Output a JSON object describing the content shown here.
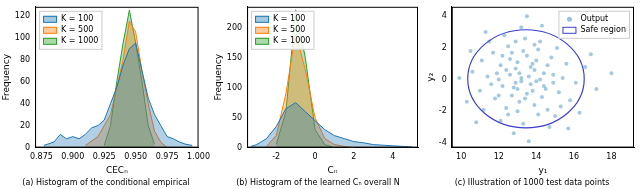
{
  "chart_data": [
    {
      "type": "line",
      "xlabel": "CECₙ",
      "ylabel": "Frequency",
      "caption": "(a) Histogram of the conditional empirical",
      "xlim": [
        0.87,
        1.0
      ],
      "xticks": [
        {
          "value": 0.875,
          "label": "0.875"
        },
        {
          "value": 0.9,
          "label": "0.900"
        },
        {
          "value": 0.925,
          "label": "0.925"
        },
        {
          "value": 0.95,
          "label": "0.950"
        },
        {
          "value": 0.975,
          "label": "0.975"
        },
        {
          "value": 1,
          "label": "1.000"
        }
      ],
      "ylim": [
        0,
        128
      ],
      "yticks": [
        0,
        20,
        40,
        60,
        80,
        100,
        120
      ],
      "grid": false,
      "legend": "upper left",
      "series": [
        {
          "name": "K = 100",
          "color": "#1f77b4",
          "x": [
            0.877,
            0.885,
            0.89,
            0.895,
            0.9,
            0.905,
            0.91,
            0.915,
            0.92,
            0.925,
            0.93,
            0.935,
            0.94,
            0.945,
            0.95,
            0.955,
            0.96,
            0.965,
            0.97,
            0.975,
            0.98,
            0.985,
            0.99,
            0.995
          ],
          "values": [
            2,
            5,
            12,
            8,
            10,
            8,
            12,
            18,
            20,
            25,
            40,
            55,
            75,
            90,
            95,
            70,
            45,
            30,
            20,
            10,
            8,
            5,
            3,
            2
          ]
        },
        {
          "name": "K = 500",
          "color": "#ff7f0e",
          "x": [
            0.91,
            0.92,
            0.93,
            0.94,
            0.945,
            0.95,
            0.955,
            0.96,
            0.965,
            0.97,
            0.975
          ],
          "values": [
            2,
            10,
            30,
            80,
            115,
            105,
            70,
            40,
            15,
            5,
            0
          ]
        },
        {
          "name": "K = 1000",
          "color": "#2ca02c",
          "x": [
            0.925,
            0.93,
            0.935,
            0.94,
            0.945,
            0.95,
            0.955,
            0.96,
            0.965
          ],
          "values": [
            2,
            20,
            60,
            95,
            125,
            95,
            60,
            20,
            3
          ]
        }
      ]
    },
    {
      "type": "line",
      "xlabel": "Cₙ",
      "ylabel": "Frequency",
      "caption": "(b) Histogram of the learned Cₙ overall N",
      "xlim": [
        -3.5,
        5.3
      ],
      "xticks": [
        -2,
        0,
        2,
        4
      ],
      "ylim": [
        0,
        235
      ],
      "yticks": [
        0,
        50,
        100,
        150,
        200
      ],
      "grid": false,
      "legend": "upper left",
      "series": [
        {
          "name": "K = 100",
          "color": "#1f77b4",
          "x": [
            -3.3,
            -3,
            -2.5,
            -2,
            -1.5,
            -1,
            -0.5,
            0,
            0.5,
            1,
            1.5,
            2,
            2.5,
            3,
            3.5,
            4,
            4.5,
            5
          ],
          "values": [
            2,
            5,
            15,
            35,
            65,
            75,
            60,
            45,
            30,
            20,
            15,
            10,
            8,
            5,
            4,
            3,
            2,
            1
          ]
        },
        {
          "name": "K = 500",
          "color": "#ff7f0e",
          "x": [
            -2.5,
            -2,
            -1.5,
            -1,
            -0.5,
            0,
            0.5,
            1,
            1.5,
            2
          ],
          "values": [
            2,
            20,
            90,
            190,
            130,
            50,
            15,
            5,
            2,
            0
          ]
        },
        {
          "name": "K = 1000",
          "color": "#2ca02c",
          "x": [
            -2,
            -1.5,
            -1,
            -0.5,
            0,
            0.5,
            1
          ],
          "values": [
            5,
            60,
            230,
            150,
            30,
            5,
            0
          ]
        }
      ]
    },
    {
      "type": "scatter",
      "xlabel": "y₁",
      "ylabel": "y₂",
      "caption": "(c) Illustration of 1000 test data points",
      "xlim": [
        9.5,
        19.2
      ],
      "xticks": [
        10,
        12,
        14,
        16,
        18
      ],
      "ylim": [
        -4.3,
        4.6
      ],
      "yticks": [
        -4,
        -2,
        0,
        2,
        4
      ],
      "grid": false,
      "legend": "upper right",
      "series": [
        {
          "name": "Output",
          "color": "#1f77b4",
          "marker": "o",
          "x": [
            13.2,
            12.8,
            13.9,
            14.3,
            12.1,
            13.5,
            11.8,
            14.9,
            13.0,
            12.5,
            14.1,
            15.2,
            11.4,
            13.7,
            12.9,
            14.6,
            12.2,
            13.4,
            15.6,
            11.0,
            13.1,
            12.6,
            14.0,
            13.8,
            12.4,
            14.4,
            11.7,
            15.0,
            13.3,
            12.0,
            16.1,
            10.6,
            13.6,
            14.8,
            12.7,
            13.9,
            11.2,
            14.2,
            12.3,
            15.4,
            13.0,
            12.9,
            14.5,
            13.5,
            11.9,
            16.6,
            10.3,
            13.2,
            14.7,
            12.1,
            15.8,
            11.5,
            13.7,
            12.6,
            14.1,
            13.3,
            12.8,
            15.1,
            11.1,
            17.2,
            9.9,
            13.6,
            14.3,
            12.4,
            13.8,
            14.9,
            12.0,
            13.1,
            12.7,
            14.6,
            16.9,
            10.8,
            13.4,
            12.2,
            15.3,
            13.9,
            11.6,
            14.0,
            12.5,
            13.0,
            18.0,
            13.5,
            15.7,
            11.3,
            14.4,
            13.2,
            12.9,
            16.3,
            10.5,
            14.2
          ],
          "values": [
            0.1,
            -0.5,
            0.6,
            -1.1,
            0.9,
            1.5,
            -1.2,
            0.3,
            -2.0,
            2.1,
            1.9,
            -0.8,
            0.2,
            -0.3,
            0.7,
            -1.9,
            -0.4,
            2.6,
            1.0,
            -0.7,
            -1.4,
            1.3,
            -0.1,
            1.0,
            -1.8,
            0.4,
            1.7,
            -2.3,
            -2.8,
            0.0,
            -0.2,
            0.5,
            0.2,
            1.4,
            -1.0,
            -1.6,
            -1.9,
            2.4,
            2.8,
            0.1,
            1.1,
            -0.2,
            -0.6,
            -0.9,
            0.4,
            0.8,
            -1.4,
            3.3,
            -3.0,
            -2.6,
            -1.3,
            2.4,
            0.8,
            0.3,
            -2.2,
            1.8,
            -3.4,
            2.0,
            1.2,
            -0.6,
            0.1,
            -3.9,
            3.4,
            0.6,
            -0.7,
            -0.2,
            -1.0,
            0.4,
            1.7,
            0.9,
            1.6,
            -2.7,
            -1.2,
            1.5,
            -1.7,
            2.2,
            -0.3,
            1.2,
            -2.2,
            -0.6,
            0.4,
            4.0,
            -3.1,
            3.0,
            -0.4,
            -0.1,
            2.4,
            -2.1,
            1.8,
            0.0
          ]
        }
      ],
      "shapes": [
        {
          "name": "Safe region",
          "type": "circle",
          "color": "#3a3fd0",
          "center": [
            13.45,
            0.05
          ],
          "radius": 3.1
        }
      ]
    }
  ]
}
